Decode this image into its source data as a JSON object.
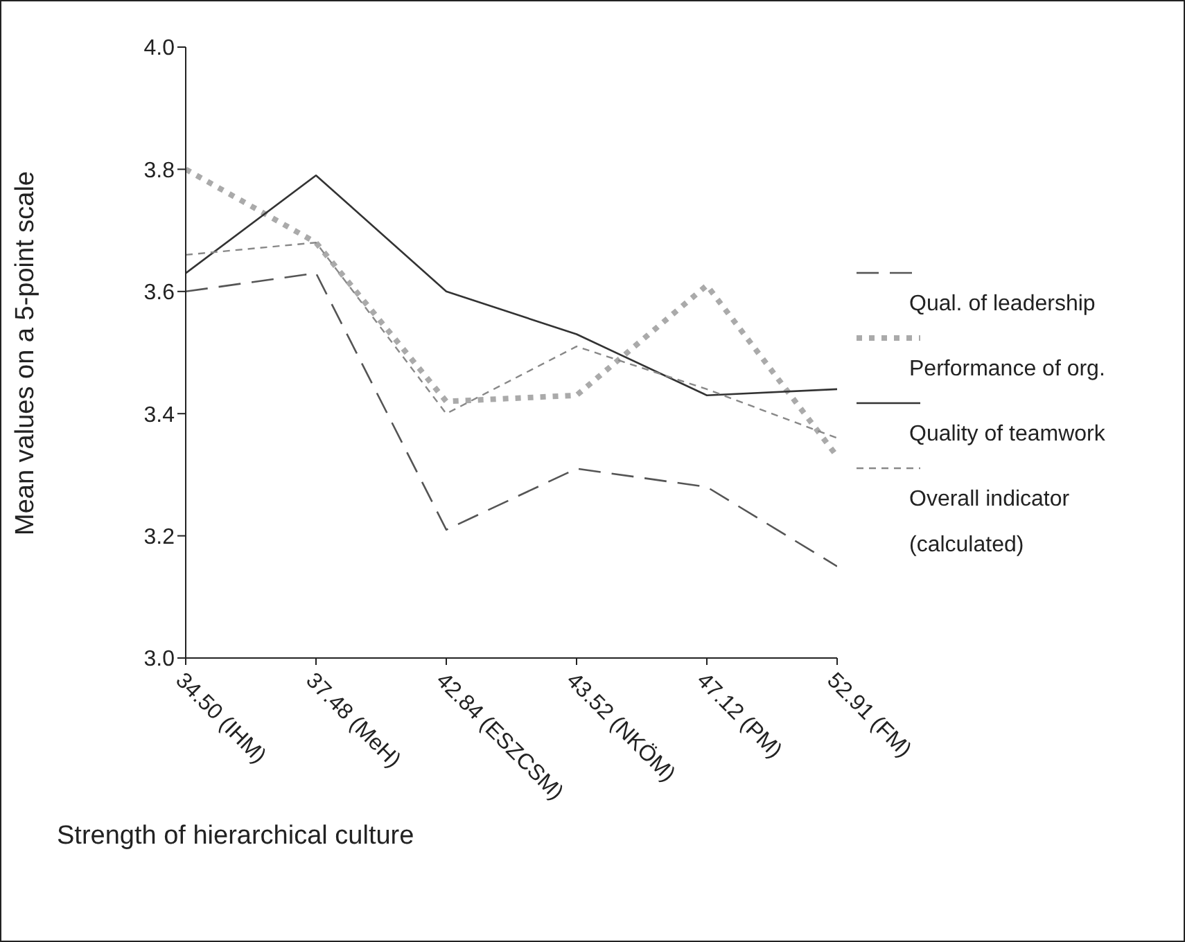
{
  "chart_data": {
    "type": "line",
    "xlabel": "Strength of hierarchical culture",
    "ylabel": "Mean values on a 5-point scale",
    "categories": [
      "34.50 (IHM)",
      "37.48 (MeH)",
      "42.84 (ESZCSM)",
      "43.52 (NKÖM)",
      "47.12 (PM)",
      "52.91 (FM)"
    ],
    "series": [
      {
        "name": "Qual. of leadership",
        "color": "#555555",
        "line_style": "dashed",
        "values": [
          3.6,
          3.63,
          3.21,
          3.31,
          3.28,
          3.15
        ]
      },
      {
        "name": "Performance of org.",
        "color": "#aaaaaa",
        "line_style": "dotted",
        "values": [
          3.8,
          3.68,
          3.42,
          3.43,
          3.61,
          3.33
        ]
      },
      {
        "name": "Quality of teamwork",
        "color": "#333333",
        "line_style": "solid",
        "values": [
          3.63,
          3.79,
          3.6,
          3.53,
          3.43,
          3.44
        ]
      },
      {
        "name": "Overall indicator (calculated)",
        "color": "#888888",
        "line_style": "short-dashed",
        "values": [
          3.66,
          3.68,
          3.4,
          3.51,
          3.44,
          3.36
        ]
      }
    ],
    "ylim": [
      3.0,
      4.0
    ],
    "yticks": [
      {
        "value": 3.0,
        "label": "3.0"
      },
      {
        "value": 3.2,
        "label": "3.2"
      },
      {
        "value": 3.4,
        "label": "3.4"
      },
      {
        "value": 3.6,
        "label": "3.6"
      },
      {
        "value": 3.8,
        "label": "3.8"
      },
      {
        "value": 4.0,
        "label": "4.0"
      }
    ],
    "grid": false,
    "legend": "right"
  }
}
